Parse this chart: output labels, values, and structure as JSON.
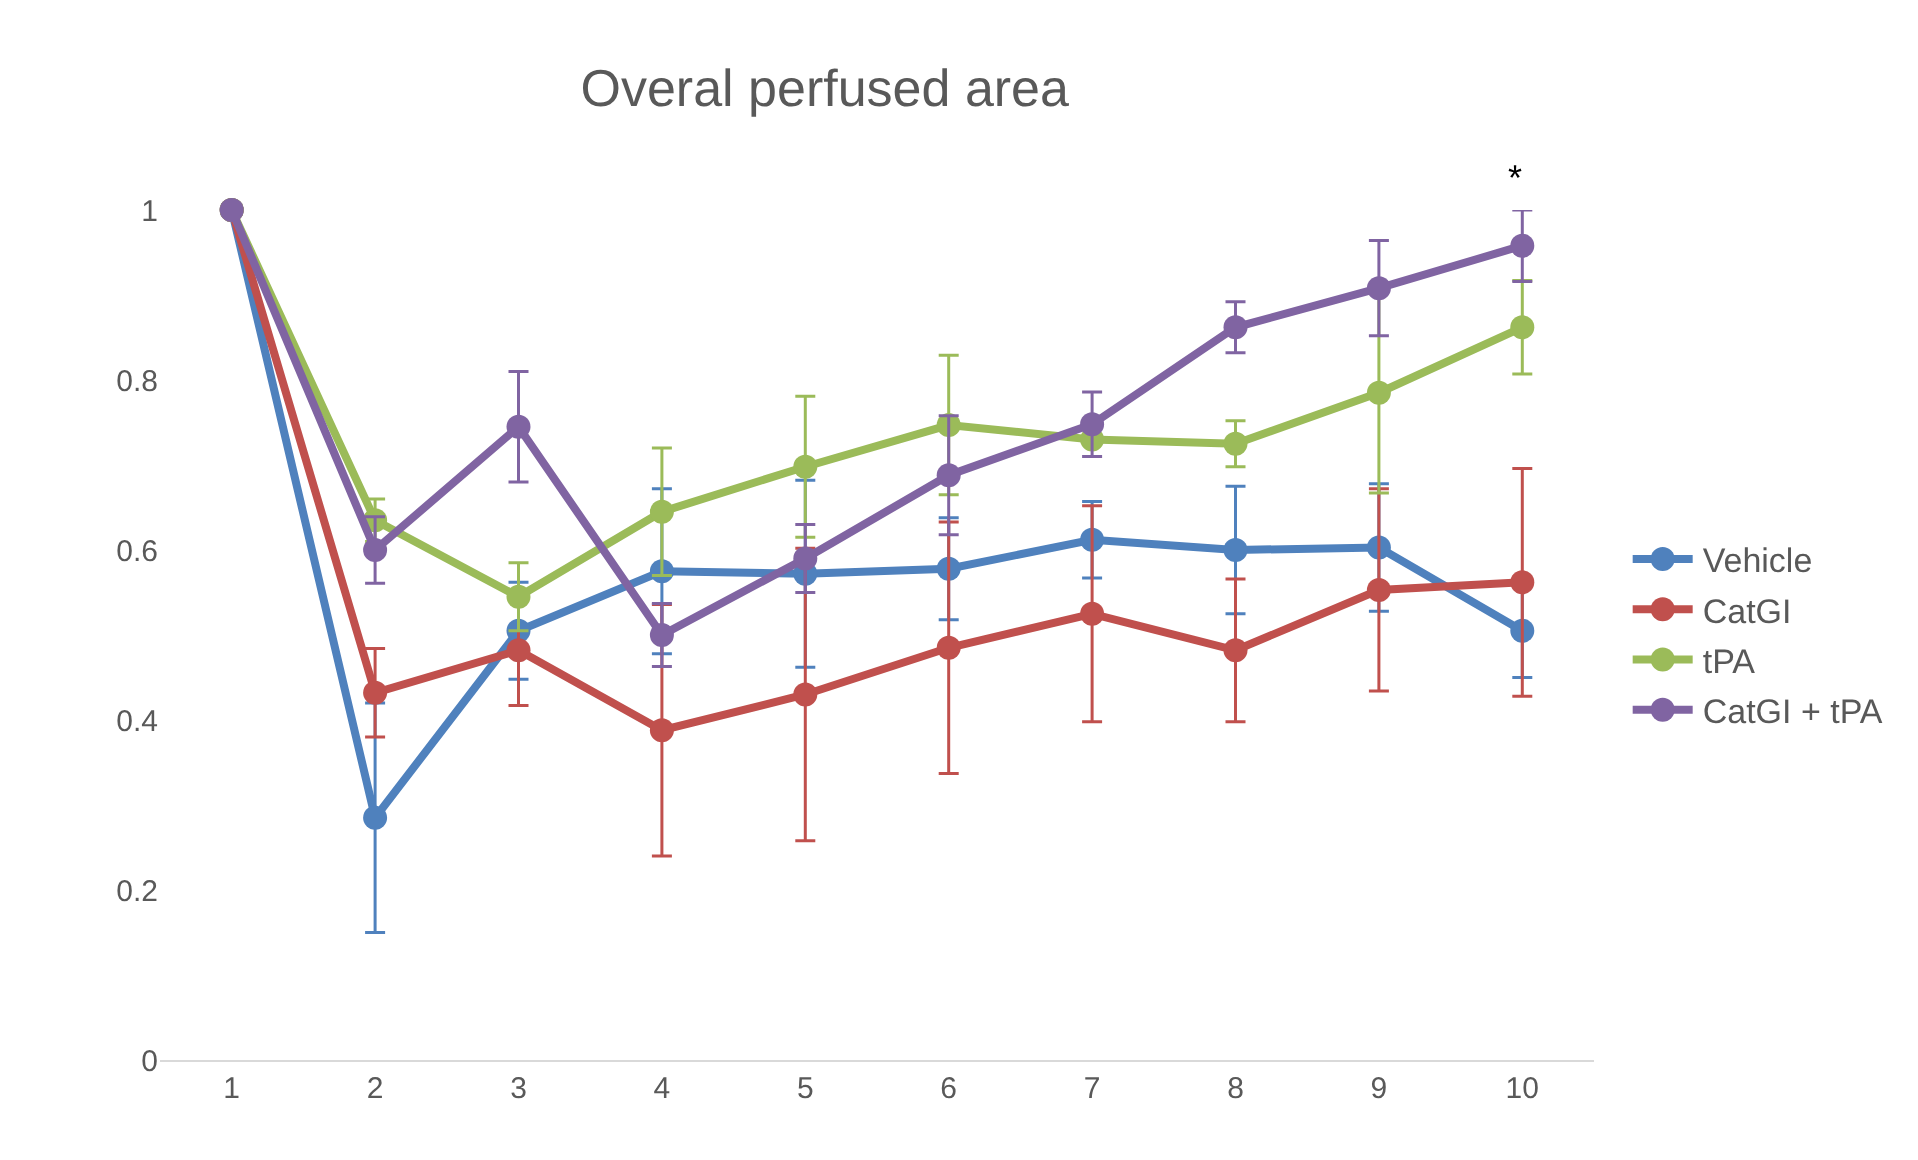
{
  "chart_data": {
    "type": "line",
    "title": "Overal perfused area",
    "x": [
      1,
      2,
      3,
      4,
      5,
      6,
      7,
      8,
      9,
      10
    ],
    "xlim": [
      0.5,
      10.5
    ],
    "xticks": [
      1,
      2,
      3,
      4,
      5,
      6,
      7,
      8,
      9,
      10
    ],
    "ylim": [
      0,
      1
    ],
    "yticks": [
      0,
      0.2,
      0.4,
      0.6,
      0.8,
      1
    ],
    "grid": false,
    "legend": "right",
    "marker": "circle",
    "line_style": "solid",
    "series": [
      {
        "name": "Vehicle",
        "color": "#4f81bd",
        "values": [
          1,
          0.285,
          0.505,
          0.575,
          0.572,
          0.578,
          0.612,
          0.6,
          0.603,
          0.505
        ],
        "errors": [
          null,
          0.135,
          0.057,
          0.097,
          0.11,
          0.06,
          0.045,
          0.075,
          0.075,
          0.055
        ]
      },
      {
        "name": "CatGI",
        "color": "#c0504d",
        "values": [
          1,
          0.432,
          0.482,
          0.388,
          0.43,
          0.485,
          0.525,
          0.482,
          0.553,
          0.562
        ],
        "errors": [
          null,
          0.052,
          0.065,
          0.148,
          0.172,
          0.148,
          0.127,
          0.084,
          0.119,
          0.134
        ]
      },
      {
        "name": "tPA",
        "color": "#9bbb59",
        "values": [
          1,
          0.635,
          0.545,
          0.645,
          0.698,
          0.747,
          0.73,
          0.725,
          0.785,
          0.862
        ],
        "errors": [
          null,
          0.025,
          0.04,
          0.075,
          0.083,
          0.082,
          null,
          0.027,
          0.118,
          0.055
        ]
      },
      {
        "name": "CatGI + tPA",
        "color": "#8064a2",
        "values": [
          1,
          0.6,
          0.745,
          0.5,
          0.59,
          0.688,
          0.748,
          0.862,
          0.908,
          0.958
        ],
        "errors": [
          null,
          0.039,
          0.065,
          0.037,
          0.04,
          0.07,
          0.038,
          0.03,
          0.056,
          0.042
        ]
      }
    ],
    "annotations": [
      "*"
    ]
  }
}
